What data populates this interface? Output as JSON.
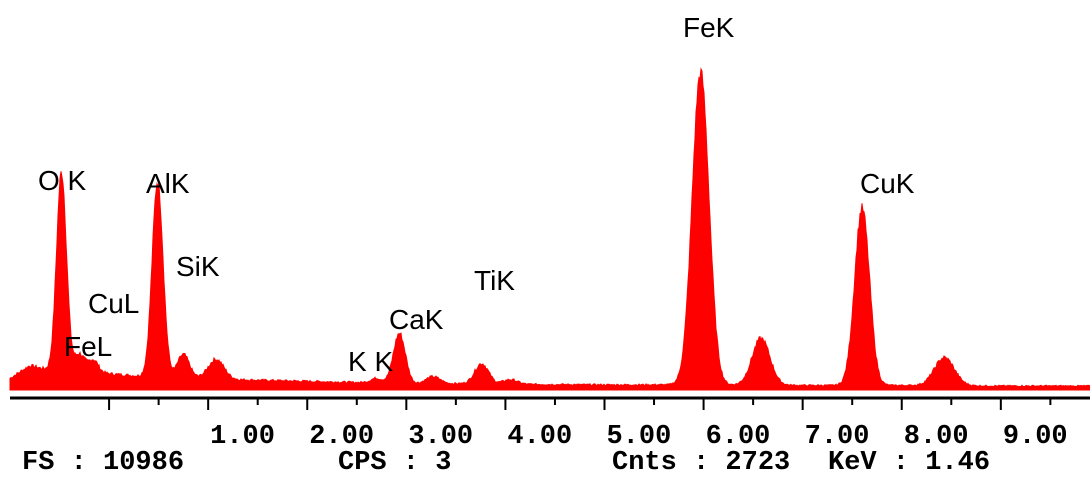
{
  "chart_data": {
    "type": "area",
    "xunit": "keV",
    "xlim": [
      -1.0,
      9.9
    ],
    "ylim": [
      0,
      2900
    ],
    "grid": false,
    "fill_color": "#ff0000",
    "x_ticks": [
      "1.00",
      "2.00",
      "3.00",
      "4.00",
      "5.00",
      "6.00",
      "7.00",
      "8.00",
      "9.00"
    ],
    "x_tick_values": [
      1,
      2,
      3,
      4,
      5,
      6,
      7,
      8,
      9
    ],
    "baseline": 45,
    "background": [
      [
        -1.0,
        100
      ],
      [
        -0.8,
        210
      ],
      [
        -0.6,
        170
      ],
      [
        -0.3,
        160
      ],
      [
        0,
        140
      ],
      [
        0.3,
        120
      ],
      [
        0.6,
        110
      ],
      [
        1.0,
        95
      ],
      [
        1.5,
        85
      ],
      [
        2.0,
        75
      ],
      [
        2.5,
        65
      ],
      [
        3.0,
        55
      ],
      [
        3.5,
        55
      ],
      [
        4.0,
        50
      ],
      [
        5.0,
        45
      ],
      [
        6.0,
        45
      ],
      [
        7.0,
        40
      ],
      [
        8.0,
        40
      ],
      [
        9.0,
        35
      ],
      [
        9.9,
        35
      ]
    ],
    "peaks": [
      {
        "label": "O K",
        "energy": -0.48,
        "counts": 1705,
        "width": 0.05
      },
      {
        "label": "FeL",
        "energy": -0.3,
        "counts": 150,
        "width": 0.05
      },
      {
        "label": "CuL",
        "energy": -0.16,
        "counts": 110,
        "width": 0.05
      },
      {
        "label": "AlK",
        "energy": 0.49,
        "counts": 1680,
        "width": 0.055
      },
      {
        "label": "SiK",
        "energy": 0.75,
        "counts": 200,
        "width": 0.06
      },
      {
        "label": "",
        "energy": 1.08,
        "counts": 170,
        "width": 0.08
      },
      {
        "label": "K K",
        "energy": 2.7,
        "counts": 40,
        "width": 0.06
      },
      {
        "label": "CaK",
        "energy": 2.93,
        "counts": 430,
        "width": 0.06
      },
      {
        "label": "",
        "energy": 3.27,
        "counts": 60,
        "width": 0.07
      },
      {
        "label": "TiK",
        "energy": 3.76,
        "counts": 175,
        "width": 0.07
      },
      {
        "label": "",
        "energy": 4.05,
        "counts": 40,
        "width": 0.07
      },
      {
        "label": "FeK",
        "energy": 5.97,
        "counts": 2680,
        "width": 0.085
      },
      {
        "label": "",
        "energy": 6.58,
        "counts": 400,
        "width": 0.09
      },
      {
        "label": "CuK",
        "energy": 7.6,
        "counts": 1520,
        "width": 0.075
      },
      {
        "label": "",
        "energy": 8.43,
        "counts": 240,
        "width": 0.1
      }
    ]
  },
  "status": {
    "fs": "FS : 10986",
    "cps": "CPS : 3",
    "cnts": "Cnts : 2723",
    "kev": "KeV : 1.46"
  }
}
